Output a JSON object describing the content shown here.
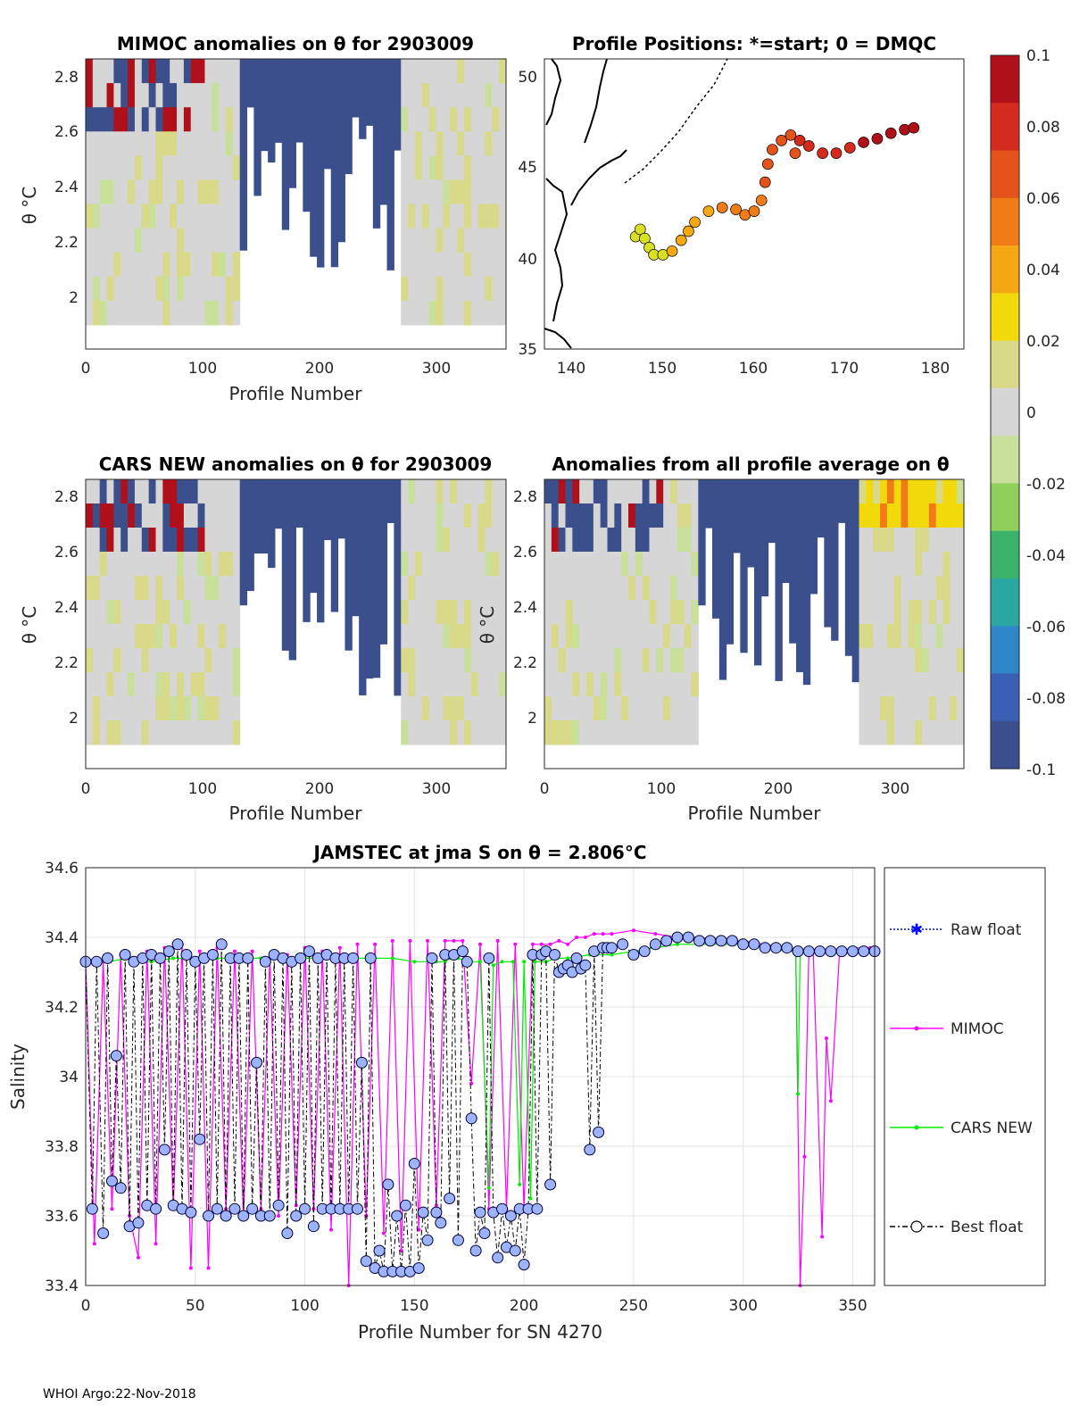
{
  "colorbar": {
    "ticks": [
      "0.1",
      "0.08",
      "0.06",
      "0.04",
      "0.02",
      "0",
      "-0.02",
      "-0.04",
      "-0.06",
      "-0.08",
      "-0.1"
    ],
    "values": [
      0.1,
      0.08,
      0.06,
      0.04,
      0.02,
      0,
      -0.02,
      -0.04,
      -0.06,
      -0.08,
      -0.1
    ],
    "colors": [
      "#b0101a",
      "#d42b1e",
      "#e4531a",
      "#f07b17",
      "#f5a813",
      "#f2d90c",
      "#d9d98a",
      "#d6d6d6",
      "#c9e09a",
      "#8fd05c",
      "#3bb36b",
      "#2aa7a0",
      "#2f86c7",
      "#3b5fb5",
      "#3a4f8c"
    ]
  },
  "panels": {
    "mimoc": {
      "title": "MIMOC anomalies on θ  for 2903009",
      "ylabel": "θ °C",
      "xlabel": "Profile Number",
      "yticks": [
        "2.8",
        "2.6",
        "2.4",
        "2.2",
        "2"
      ],
      "xticks": [
        "0",
        "100",
        "200",
        "300"
      ]
    },
    "positions": {
      "title": "Profile Positions: *=start; 0 = DMQC",
      "xticks": [
        "140",
        "150",
        "160",
        "170",
        "180"
      ],
      "yticks": [
        "50",
        "45",
        "40",
        "35"
      ]
    },
    "cars": {
      "title": "CARS NEW anomalies on θ for 2903009",
      "ylabel": "θ °C",
      "xlabel": "Profile Number",
      "yticks": [
        "2.8",
        "2.6",
        "2.4",
        "2.2",
        "2"
      ],
      "xticks": [
        "0",
        "100",
        "200",
        "300"
      ]
    },
    "avg": {
      "title": "Anomalies from all profile average on θ",
      "ylabel": "θ °C",
      "xlabel": "Profile Number",
      "yticks": [
        "2.8",
        "2.6",
        "2.4",
        "2.2",
        "2"
      ],
      "xticks": [
        "0",
        "100",
        "200",
        "300"
      ]
    }
  },
  "chart_data": {
    "type": "line",
    "title": "JAMSTEC at jma S on θ = 2.806°C",
    "xlabel": "Profile Number for SN 4270",
    "ylabel": "Salinity",
    "xlim": [
      0,
      360
    ],
    "ylim": [
      33.4,
      34.6
    ],
    "xticks": [
      "0",
      "50",
      "100",
      "150",
      "200",
      "250",
      "300",
      "350"
    ],
    "yticks": [
      "34.6",
      "34.4",
      "34.2",
      "34",
      "33.8",
      "33.6",
      "33.4"
    ],
    "grid": true,
    "legend": [
      "Raw float",
      "MIMOC",
      "CARS NEW",
      "Best float"
    ],
    "series": [
      {
        "name": "MIMOC",
        "color": "#ff00ff",
        "x": [
          0,
          4,
          8,
          12,
          16,
          20,
          24,
          28,
          32,
          36,
          40,
          44,
          48,
          52,
          56,
          60,
          64,
          68,
          72,
          76,
          80,
          84,
          88,
          92,
          96,
          100,
          104,
          108,
          112,
          116,
          120,
          124,
          128,
          132,
          136,
          140,
          144,
          148,
          152,
          156,
          160,
          164,
          168,
          172,
          176,
          180,
          184,
          188,
          192,
          196,
          200,
          204,
          208,
          212,
          216,
          220,
          224,
          228,
          232,
          236,
          240,
          250,
          260,
          270,
          280,
          290,
          300,
          310,
          320,
          324,
          326,
          328,
          330,
          332,
          336,
          338,
          340,
          344,
          350,
          358
        ],
        "y": [
          34.33,
          33.52,
          34.33,
          33.62,
          34.35,
          33.6,
          33.48,
          34.36,
          33.52,
          34.37,
          33.62,
          34.38,
          33.45,
          34.36,
          33.45,
          34.37,
          33.62,
          34.36,
          33.59,
          34.36,
          33.62,
          34.34,
          33.6,
          34.35,
          33.63,
          34.37,
          33.62,
          34.36,
          33.56,
          34.37,
          33.4,
          34.38,
          33.6,
          34.38,
          33.55,
          34.39,
          33.5,
          34.39,
          33.56,
          34.39,
          33.63,
          34.39,
          34.39,
          34.39,
          33.98,
          34.38,
          33.62,
          34.39,
          33.62,
          34.38,
          33.62,
          34.38,
          34.38,
          34.38,
          34.39,
          34.38,
          34.4,
          34.4,
          34.41,
          34.41,
          34.41,
          34.42,
          34.41,
          34.4,
          34.4,
          34.39,
          34.39,
          34.38,
          34.37,
          34.36,
          33.4,
          33.77,
          34.36,
          34.36,
          33.54,
          34.11,
          33.93,
          34.36,
          34.37,
          34.37
        ]
      },
      {
        "name": "CARS NEW",
        "color": "#00ee00",
        "x": [
          0,
          10,
          20,
          30,
          40,
          50,
          60,
          70,
          80,
          90,
          100,
          110,
          120,
          130,
          140,
          150,
          160,
          164,
          166,
          170,
          175,
          180,
          184,
          186,
          190,
          195,
          198,
          200,
          203,
          205,
          210,
          215,
          220,
          230,
          240,
          250,
          260,
          270,
          280,
          290,
          300,
          310,
          320,
          324,
          325,
          326,
          328,
          330,
          340,
          350,
          358
        ],
        "y": [
          34.33,
          34.33,
          34.34,
          34.33,
          34.34,
          34.34,
          34.34,
          34.34,
          34.34,
          34.34,
          34.34,
          34.34,
          34.34,
          34.34,
          34.34,
          34.33,
          34.33,
          34.33,
          34.34,
          34.34,
          34.33,
          34.33,
          33.68,
          34.32,
          34.33,
          34.33,
          33.69,
          34.33,
          33.65,
          34.33,
          34.33,
          34.34,
          34.34,
          34.35,
          34.35,
          34.36,
          34.37,
          34.38,
          34.38,
          34.38,
          34.38,
          34.37,
          34.36,
          34.36,
          33.95,
          34.36,
          34.36,
          34.36,
          34.36,
          34.36,
          34.36
        ]
      },
      {
        "name": "Best float",
        "color": "#000000",
        "x": [
          0,
          3,
          5,
          8,
          10,
          12,
          14,
          16,
          18,
          20,
          22,
          24,
          26,
          28,
          30,
          32,
          34,
          36,
          38,
          40,
          42,
          44,
          46,
          48,
          50,
          52,
          54,
          56,
          58,
          60,
          62,
          64,
          66,
          68,
          70,
          72,
          74,
          76,
          78,
          80,
          82,
          84,
          86,
          88,
          90,
          92,
          94,
          96,
          98,
          100,
          102,
          104,
          106,
          108,
          110,
          112,
          114,
          116,
          118,
          120,
          122,
          124,
          126,
          128,
          130,
          132,
          134,
          136,
          138,
          140,
          142,
          144,
          146,
          148,
          150,
          152,
          154,
          156,
          158,
          160,
          162,
          164,
          166,
          168,
          170,
          172,
          174,
          176,
          178,
          180,
          182,
          184,
          186,
          188,
          190,
          192,
          194,
          196,
          198,
          200,
          202,
          204,
          206,
          208,
          210,
          212,
          214,
          216,
          218,
          220,
          222,
          224,
          226,
          228,
          230,
          232,
          234,
          236,
          238,
          240,
          245,
          250,
          255,
          260,
          265,
          270,
          275,
          280,
          285,
          290,
          295,
          300,
          305,
          310,
          315,
          320,
          325,
          330,
          335,
          340,
          345,
          350,
          355,
          360
        ],
        "y": [
          34.33,
          33.62,
          34.33,
          33.55,
          34.34,
          33.7,
          34.06,
          33.68,
          34.35,
          33.57,
          34.33,
          33.58,
          34.34,
          33.63,
          34.35,
          33.62,
          34.34,
          33.79,
          34.36,
          33.63,
          34.38,
          33.62,
          34.35,
          33.61,
          34.33,
          33.82,
          34.34,
          33.6,
          34.35,
          33.62,
          34.38,
          33.6,
          34.34,
          33.62,
          34.34,
          33.6,
          34.34,
          33.62,
          34.04,
          33.6,
          34.33,
          33.6,
          34.35,
          33.63,
          34.34,
          33.55,
          34.33,
          33.6,
          34.34,
          33.62,
          34.36,
          33.57,
          34.34,
          33.62,
          34.35,
          33.62,
          34.34,
          33.62,
          34.34,
          33.62,
          34.34,
          33.62,
          34.04,
          33.47,
          34.34,
          33.45,
          33.5,
          33.44,
          33.69,
          33.44,
          33.6,
          33.44,
          33.63,
          33.44,
          33.75,
          33.45,
          33.61,
          33.53,
          34.34,
          33.61,
          33.58,
          34.35,
          33.65,
          34.35,
          33.53,
          34.36,
          34.33,
          33.88,
          33.5,
          33.61,
          33.55,
          34.34,
          33.61,
          33.48,
          33.62,
          33.51,
          33.6,
          33.5,
          33.62,
          33.46,
          33.62,
          34.35,
          33.62,
          34.35,
          34.36,
          33.69,
          34.35,
          34.3,
          34.31,
          34.32,
          34.3,
          34.34,
          34.31,
          34.32,
          33.79,
          34.36,
          33.84,
          34.37,
          34.37,
          34.37,
          34.38,
          34.35,
          34.36,
          34.38,
          34.39,
          34.4,
          34.4,
          34.39,
          34.39,
          34.39,
          34.39,
          34.38,
          34.38,
          34.37,
          34.37,
          34.37,
          34.36,
          34.36,
          34.36,
          34.36,
          34.36,
          34.36,
          34.36,
          34.36
        ]
      }
    ]
  },
  "footer": "WHOI Argo:22-Nov-2018"
}
